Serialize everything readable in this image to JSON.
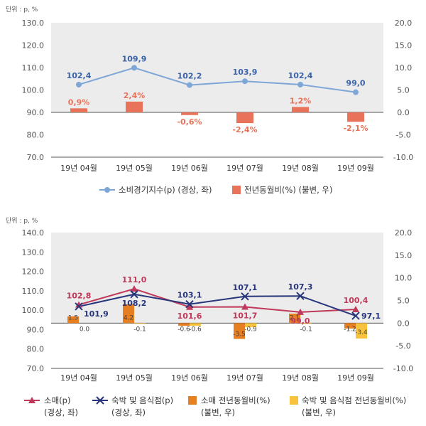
{
  "chart_data": [
    {
      "type": "line+bar",
      "unit_label": "단위 : p, %",
      "categories": [
        "19년 04월",
        "19년 05월",
        "19년 06월",
        "19년 07월",
        "19년 08월",
        "19년 09월"
      ],
      "y_left": {
        "ticks": [
          "70.0",
          "80.0",
          "90.0",
          "100.0",
          "110.0",
          "120.0",
          "130.0"
        ],
        "range": [
          70,
          130
        ]
      },
      "y_right": {
        "ticks": [
          "-10.0",
          "-5.0",
          "0.0",
          "5.0",
          "10.0",
          "15.0",
          "20.0"
        ],
        "range": [
          -10,
          20
        ]
      },
      "series": [
        {
          "name": "소비경기지수(p) (경상, 좌)",
          "kind": "line",
          "axis": "left",
          "color": "#7ea6d6",
          "values": [
            102.4,
            109.9,
            102.2,
            103.9,
            102.4,
            99.0
          ],
          "labels": [
            "102,4",
            "109,9",
            "102,2",
            "103,9",
            "102,4",
            "99,0"
          ]
        },
        {
          "name": "전년동월비(%) (불변, 우)",
          "kind": "bar",
          "axis": "right",
          "color": "#e8735a",
          "values": [
            0.9,
            2.4,
            -0.6,
            -2.4,
            1.2,
            -2.1
          ],
          "labels": [
            "0,9%",
            "2,4%",
            "-0,6%",
            "-2,4%",
            "1,2%",
            "-2,1%"
          ]
        }
      ]
    },
    {
      "type": "line+bar",
      "unit_label": "단위 : p, %",
      "categories": [
        "19년 04월",
        "19년 05월",
        "19년 06월",
        "19년 07월",
        "19년 08월",
        "19년 09월"
      ],
      "y_left": {
        "ticks": [
          "70.0",
          "80.0",
          "90.0",
          "100.0",
          "110.0",
          "120.0",
          "130.0",
          "140.0"
        ],
        "range": [
          70,
          140
        ]
      },
      "y_right": {
        "ticks": [
          "-10.0",
          "-5.0",
          "0.0",
          "5.0",
          "10.0",
          "15.0",
          "20.0"
        ],
        "range": [
          -10,
          20
        ]
      },
      "series": [
        {
          "name": "소매(p)",
          "sub": "(경상, 좌)",
          "kind": "line",
          "axis": "left",
          "color": "#c0395a",
          "marker": "triangle",
          "values": [
            102.8,
            111.0,
            101.6,
            101.7,
            99.0,
            100.4
          ],
          "labels": [
            "102,8",
            "111,0",
            "101,6",
            "101,7",
            "99,0",
            "100,4"
          ]
        },
        {
          "name": "숙박 및 음식점(p)",
          "sub": "(경상, 좌)",
          "kind": "line",
          "axis": "left",
          "color": "#27357a",
          "marker": "x",
          "values": [
            101.9,
            108.2,
            103.1,
            107.1,
            107.3,
            97.1
          ],
          "labels": [
            "101,9",
            "108,2",
            "103,1",
            "107,1",
            "107,3",
            "97,1"
          ]
        },
        {
          "name": "소매 전년동월비(%)",
          "sub": "(불변, 우)",
          "kind": "bar",
          "axis": "right",
          "color": "#e67e22",
          "values": [
            1.5,
            4.2,
            -0.6,
            -3.5,
            2.1,
            -1.2
          ],
          "labels": [
            "1.5",
            "4.2",
            "-0.6",
            "-3.5",
            "2.1",
            "-1.2"
          ]
        },
        {
          "name": "숙박 및 음식점 전년동월비(%)",
          "sub": "(불변, 우)",
          "kind": "bar",
          "axis": "right",
          "color": "#f7c23c",
          "values": [
            0.0,
            -0.1,
            -0.6,
            -0.9,
            -0.1,
            -3.4
          ],
          "labels": [
            "0.0",
            "-0.1",
            "-0.6",
            "-0.9",
            "-0.1",
            "-3.4"
          ]
        }
      ]
    }
  ]
}
